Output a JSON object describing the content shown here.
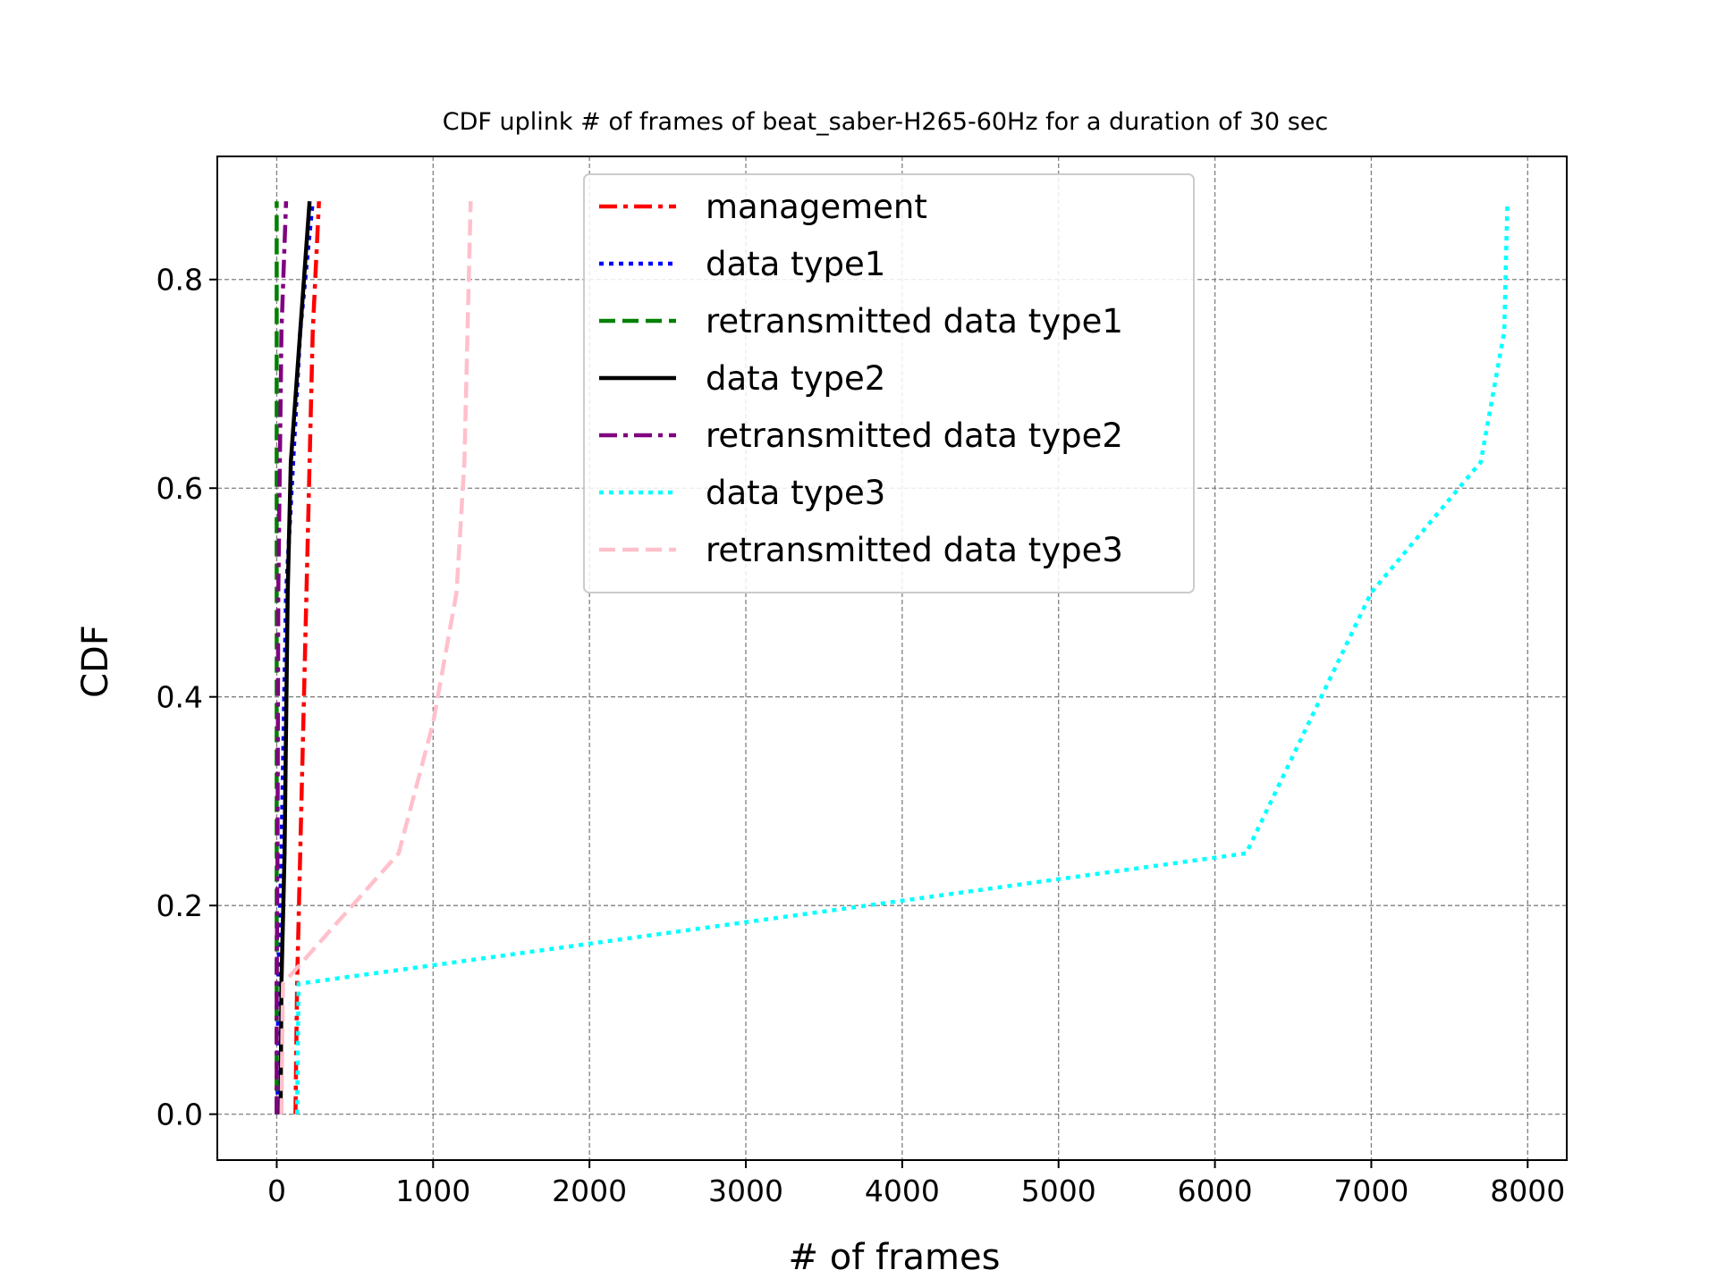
{
  "chart_data": {
    "type": "line",
    "title": "CDF uplink # of frames of beat_saber-H265-60Hz for a duration of 30 sec",
    "xlabel": "# of frames",
    "ylabel": "CDF",
    "xlim": [
      -380,
      8250
    ],
    "ylim": [
      -0.044,
      0.918
    ],
    "xticks": [
      0,
      1000,
      2000,
      3000,
      4000,
      5000,
      6000,
      7000,
      8000
    ],
    "xtick_labels": [
      "0",
      "1000",
      "2000",
      "3000",
      "4000",
      "5000",
      "6000",
      "7000",
      "8000"
    ],
    "yticks": [
      0.0,
      0.2,
      0.4,
      0.6,
      0.8
    ],
    "ytick_labels": [
      "0.0",
      "0.2",
      "0.4",
      "0.6",
      "0.8"
    ],
    "grid": true,
    "legend_position": "upper center",
    "series": [
      {
        "name": "management",
        "color": "#ff0000",
        "style": "dashdot",
        "x": [
          120,
          130,
          150,
          190,
          230,
          270
        ],
        "y": [
          0.0,
          0.125,
          0.25,
          0.5,
          0.75,
          0.875
        ]
      },
      {
        "name": "data type1",
        "color": "#0000ff",
        "style": "dotted",
        "x": [
          5,
          10,
          30,
          60,
          150,
          230
        ],
        "y": [
          0.0,
          0.125,
          0.25,
          0.5,
          0.75,
          0.875
        ]
      },
      {
        "name": "retransmitted data type1",
        "color": "#008000",
        "style": "dashed",
        "x": [
          0,
          0,
          0,
          0,
          0,
          0
        ],
        "y": [
          0.0,
          0.125,
          0.25,
          0.5,
          0.75,
          0.875
        ]
      },
      {
        "name": "data type2",
        "color": "#000000",
        "style": "solid",
        "x": [
          25,
          30,
          50,
          70,
          90,
          210
        ],
        "y": [
          0.0,
          0.125,
          0.25,
          0.5,
          0.625,
          0.875
        ]
      },
      {
        "name": "retransmitted data type2",
        "color": "#800080",
        "style": "dashdot",
        "x": [
          0,
          0,
          5,
          10,
          30,
          60
        ],
        "y": [
          0.0,
          0.125,
          0.25,
          0.5,
          0.75,
          0.875
        ]
      },
      {
        "name": "data type3",
        "color": "#00ffff",
        "style": "dotted",
        "x": [
          130,
          140,
          6200,
          7000,
          7700,
          7850,
          7870
        ],
        "y": [
          0.0,
          0.125,
          0.25,
          0.5,
          0.625,
          0.75,
          0.875
        ]
      },
      {
        "name": "retransmitted data type3",
        "color": "#ffc0cb",
        "style": "dashed",
        "x": [
          30,
          40,
          780,
          1000,
          1150,
          1200,
          1240
        ],
        "y": [
          0.0,
          0.125,
          0.25,
          0.375,
          0.5,
          0.625,
          0.875
        ]
      }
    ]
  }
}
